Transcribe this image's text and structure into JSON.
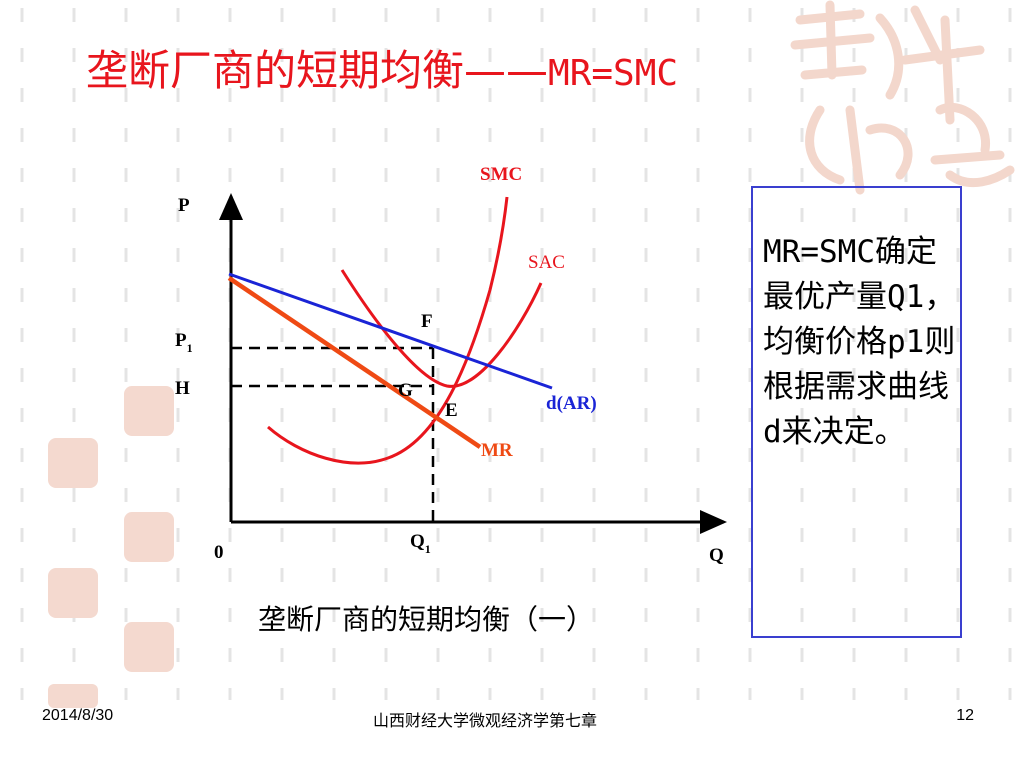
{
  "slide": {
    "title_cn": "垄断厂商的短期均衡——",
    "title_en": "MR=SMC",
    "caption": "垄断厂商的短期均衡（一）",
    "note": "MR=SMC确定最优产量Q1，均衡价格p1则根据需求曲线d来决定。",
    "footer_date": "2014/8/30",
    "footer_center": "山西财经大学微观经济学第七章",
    "page_number": "12",
    "colors": {
      "title": "#e8151d",
      "curve_red": "#e8151d",
      "ar_line": "#1a24d6",
      "mr_line": "#ef4a14",
      "note_border": "#3a3fcf",
      "watermark": "#f4d9cf"
    }
  },
  "diagram": {
    "y_axis_label": "P",
    "x_axis_label": "Q",
    "origin_label": "0",
    "p1_label": "P",
    "p1_sub": "1",
    "h_label": "H",
    "q1_label": "Q",
    "q1_sub": "1",
    "smc_label": "SMC",
    "sac_label": "SAC",
    "ar_label": "d(AR)",
    "mr_label": "MR",
    "point_f": "F",
    "point_g": "G",
    "point_e": "E"
  }
}
